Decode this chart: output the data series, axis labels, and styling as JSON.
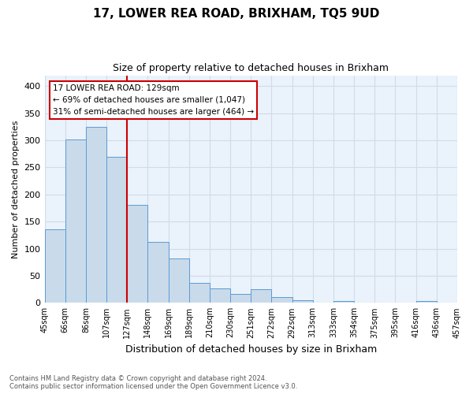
{
  "title": "17, LOWER REA ROAD, BRIXHAM, TQ5 9UD",
  "subtitle": "Size of property relative to detached houses in Brixham",
  "xlabel": "Distribution of detached houses by size in Brixham",
  "ylabel": "Number of detached properties",
  "footnote1": "Contains HM Land Registry data © Crown copyright and database right 2024.",
  "footnote2": "Contains public sector information licensed under the Open Government Licence v3.0.",
  "bar_labels": [
    "45sqm",
    "66sqm",
    "86sqm",
    "107sqm",
    "127sqm",
    "148sqm",
    "169sqm",
    "189sqm",
    "210sqm",
    "230sqm",
    "251sqm",
    "272sqm",
    "292sqm",
    "313sqm",
    "333sqm",
    "354sqm",
    "375sqm",
    "395sqm",
    "416sqm",
    "436sqm",
    "457sqm"
  ],
  "bar_values": [
    135,
    302,
    325,
    270,
    181,
    112,
    82,
    37,
    27,
    17,
    25,
    10,
    5,
    1,
    4,
    1,
    1,
    0,
    4,
    0
  ],
  "bar_color": "#c9daea",
  "bar_edge_color": "#5b9bd5",
  "ylim": [
    0,
    420
  ],
  "yticks": [
    0,
    50,
    100,
    150,
    200,
    250,
    300,
    350,
    400
  ],
  "vline_color": "#cc0000",
  "annotation_text": "17 LOWER REA ROAD: 129sqm\n← 69% of detached houses are smaller (1,047)\n31% of semi-detached houses are larger (464) →",
  "annotation_box_color": "#ffffff",
  "annotation_box_edge": "#cc0000",
  "grid_color": "#d0dce8",
  "bg_color": "#eaf2fb"
}
